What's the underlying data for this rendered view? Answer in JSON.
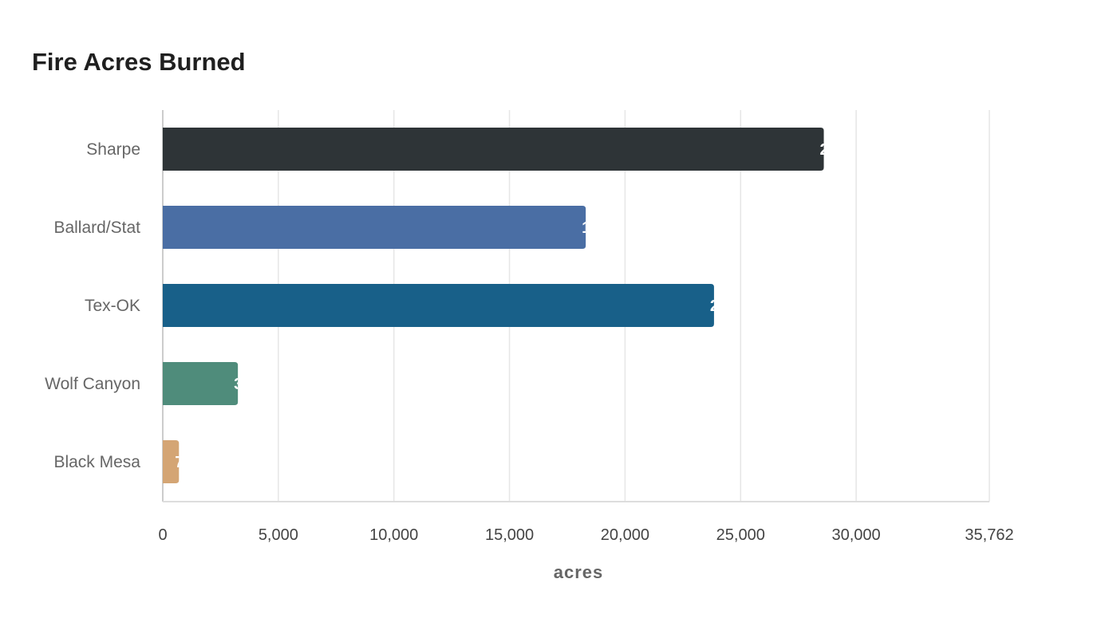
{
  "chart_data": {
    "type": "bar",
    "orientation": "horizontal",
    "title": "Fire Acres Burned",
    "xlabel": "acres",
    "ylabel": "",
    "categories": [
      "Sharpe",
      "Ballard/Stat",
      "Tex-OK",
      "Wolf Canyon",
      "Black Mesa"
    ],
    "values": [
      28600,
      18300,
      23850,
      3250,
      700
    ],
    "colors": [
      "#2e3437",
      "#4a6ea4",
      "#186089",
      "#4f8c7b",
      "#d4a574"
    ],
    "xlim": [
      0,
      35762
    ],
    "xticks": [
      0,
      5000,
      10000,
      15000,
      20000,
      25000,
      30000,
      35762
    ],
    "xtick_labels": [
      "0",
      "5,000",
      "10,000",
      "15,000",
      "20,000",
      "25,000",
      "30,000",
      "35,762"
    ],
    "grid": true
  }
}
